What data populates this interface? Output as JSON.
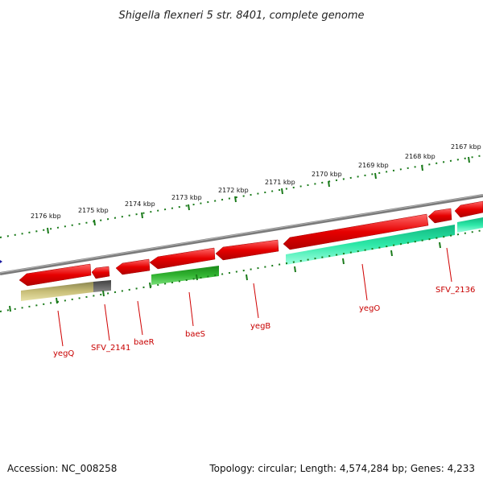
{
  "title": "Shigella flexneri 5 str. 8401, complete genome",
  "footer": {
    "accession": "Accession: NC_008258",
    "summary": "Topology: circular; Length: 4,574,284 bp; Genes: 4,233"
  },
  "scale": {
    "unit": "kbp",
    "ticks": [
      "2176 kbp",
      "2175 kbp",
      "2174 kbp",
      "2173 kbp",
      "2172 kbp",
      "2171 kbp",
      "2170 kbp",
      "2169 kbp",
      "2168 kbp",
      "2167 kbp"
    ]
  },
  "genes": [
    {
      "label": "yegQ",
      "color": "#c80000"
    },
    {
      "label": "SFV_2141",
      "color": "#c80000"
    },
    {
      "label": "baeR",
      "color": "#c80000"
    },
    {
      "label": "baeS",
      "color": "#c80000"
    },
    {
      "label": "yegB",
      "color": "#c80000"
    },
    {
      "label": "yegO",
      "color": "#c80000"
    },
    {
      "label": "SFV_2136",
      "color": "#c80000"
    }
  ],
  "colors": {
    "backbone": "#808080",
    "cds": "#e60000",
    "track_olive": "#c8be78",
    "track_gray": "#646464",
    "track_green": "#32b432",
    "track_teal": "#2ee8a8",
    "ruler": "#1a7a1a",
    "marker": "#1a1aa0"
  }
}
